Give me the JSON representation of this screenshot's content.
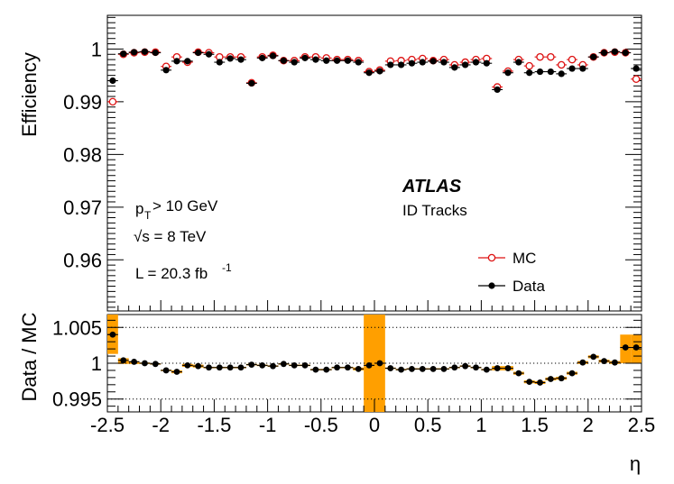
{
  "chart_data": [
    {
      "type": "scatter",
      "title": "",
      "xlabel": "η",
      "ylabel": "Efficiency",
      "xlim": [
        -2.5,
        2.5
      ],
      "ylim": [
        0.9503,
        1.0064
      ],
      "yticks": [
        "0.96",
        "0.97",
        "0.98",
        "0.99",
        "1"
      ],
      "annotations": {
        "atlas": "ATLAS",
        "tracks": "ID Tracks",
        "pt_p": "p",
        "pt_sub": "T",
        "pt_rest": " > 10 GeV",
        "sqrt_s": "√s = 8 TeV",
        "lumi_main": "L = 20.3 fb",
        "lumi_sup": "-1"
      },
      "legend": {
        "position": "bottom-right",
        "mc_label": "MC",
        "data_label": "Data"
      },
      "x": [
        -2.45,
        -2.35,
        -2.25,
        -2.15,
        -2.05,
        -1.95,
        -1.85,
        -1.75,
        -1.65,
        -1.55,
        -1.45,
        -1.35,
        -1.25,
        -1.15,
        -1.05,
        -0.95,
        -0.85,
        -0.75,
        -0.65,
        -0.55,
        -0.45,
        -0.35,
        -0.25,
        -0.15,
        -0.05,
        0.05,
        0.15,
        0.25,
        0.35,
        0.45,
        0.55,
        0.65,
        0.75,
        0.85,
        0.95,
        1.05,
        1.15,
        1.25,
        1.35,
        1.45,
        1.55,
        1.65,
        1.75,
        1.85,
        1.95,
        2.05,
        2.15,
        2.25,
        2.35,
        2.45
      ],
      "series": [
        {
          "name": "MC",
          "values": [
            0.99,
            0.999,
            0.9993,
            0.9994,
            0.9994,
            0.9967,
            0.9985,
            0.9975,
            0.9994,
            0.9993,
            0.9985,
            0.9985,
            0.9985,
            0.9936,
            0.9985,
            0.9988,
            0.9978,
            0.9978,
            0.9985,
            0.9985,
            0.9983,
            0.998,
            0.998,
            0.9978,
            0.9957,
            0.996,
            0.9977,
            0.9978,
            0.998,
            0.9982,
            0.9978,
            0.998,
            0.997,
            0.9975,
            0.998,
            0.9982,
            0.9928,
            0.9958,
            0.998,
            0.9968,
            0.9985,
            0.9985,
            0.997,
            0.998,
            0.997,
            0.9985,
            0.9993,
            0.9994,
            0.9993,
            0.9943
          ]
        },
        {
          "name": "Data",
          "values": [
            0.994,
            0.9991,
            0.9994,
            0.9995,
            0.9993,
            0.996,
            0.9977,
            0.9977,
            0.9993,
            0.999,
            0.9975,
            0.9982,
            0.998,
            0.9935,
            0.9983,
            0.9987,
            0.9978,
            0.9975,
            0.9983,
            0.998,
            0.9978,
            0.9978,
            0.9978,
            0.9975,
            0.9955,
            0.9958,
            0.997,
            0.997,
            0.9973,
            0.9975,
            0.9977,
            0.9975,
            0.9965,
            0.997,
            0.9975,
            0.9973,
            0.9923,
            0.9955,
            0.9975,
            0.9955,
            0.9957,
            0.9957,
            0.9953,
            0.9963,
            0.9963,
            0.9985,
            0.9993,
            0.9995,
            0.9993,
            0.9963
          ]
        }
      ]
    },
    {
      "type": "scatter",
      "ylabel": "Data / MC",
      "xlabel": "η",
      "xlim": [
        -2.5,
        2.5
      ],
      "ylim": [
        0.9932,
        1.0068
      ],
      "yticks": [
        "0.995",
        "1",
        "1.005"
      ],
      "xticks": [
        "-2.5",
        "-2",
        "-1.5",
        "-1",
        "-0.5",
        "0",
        "0.5",
        "1",
        "1.5",
        "2",
        "2.5"
      ],
      "reference_lines": [
        0.995,
        1.0,
        1.005
      ],
      "ratio": [
        1.004,
        1.0004,
        1.0002,
        1.0,
        0.9999,
        0.999,
        0.9988,
        0.9997,
        0.9996,
        0.9994,
        0.9994,
        0.9994,
        0.9994,
        0.9998,
        0.9997,
        0.9996,
        0.9999,
        0.9997,
        0.9997,
        0.9991,
        0.9991,
        0.9994,
        0.9994,
        0.9992,
        0.9997,
        1.0,
        0.9993,
        0.9991,
        0.9992,
        0.9992,
        0.9992,
        0.9992,
        0.9994,
        0.9996,
        0.9994,
        0.9991,
        0.9993,
        0.9993,
        0.9986,
        0.9974,
        0.9973,
        0.9978,
        0.9979,
        0.9986,
        1.0001,
        1.0009,
        1.0003,
        1.0001,
        1.0022,
        1.0022
      ],
      "syst_lo": [
        1.0013,
        0.9999,
        0.9999,
        0.9999,
        0.9998,
        0.9989,
        0.9986,
        0.9995,
        0.9994,
        0.9993,
        0.9993,
        0.9993,
        0.9993,
        0.9997,
        0.9996,
        0.9995,
        0.9998,
        0.9996,
        0.9996,
        0.999,
        0.999,
        0.9993,
        0.9993,
        0.999,
        0.9932,
        0.9932,
        0.9992,
        0.999,
        0.9991,
        0.9991,
        0.9991,
        0.9991,
        0.9993,
        0.9995,
        0.9993,
        0.999,
        0.999,
        0.999,
        0.9984,
        0.9972,
        0.9971,
        0.9976,
        0.9977,
        0.9984,
        0.9999,
        1.0007,
        1.0001,
        0.9999,
        1.0,
        1.0
      ],
      "syst_hi": [
        1.0068,
        1.0007,
        1.0003,
        1.0001,
        1.0,
        0.9991,
        0.999,
        0.9999,
        0.9998,
        0.9995,
        0.9995,
        0.9995,
        0.9995,
        0.9999,
        0.9998,
        0.9997,
        1.0,
        0.9998,
        0.9998,
        0.9992,
        0.9992,
        0.9995,
        0.9995,
        0.9994,
        1.0068,
        1.0068,
        0.9994,
        0.9992,
        0.9993,
        0.9993,
        0.9993,
        0.9993,
        0.9995,
        0.9997,
        0.9995,
        0.9992,
        0.9996,
        0.9996,
        0.9988,
        0.9976,
        0.9975,
        0.998,
        0.9981,
        0.9988,
        1.0003,
        1.0011,
        1.0005,
        1.0003,
        1.004,
        1.004
      ]
    }
  ],
  "colors": {
    "mc": "#dd1111",
    "data": "#000000",
    "syst": "#ff9f00",
    "line": "#000000"
  }
}
